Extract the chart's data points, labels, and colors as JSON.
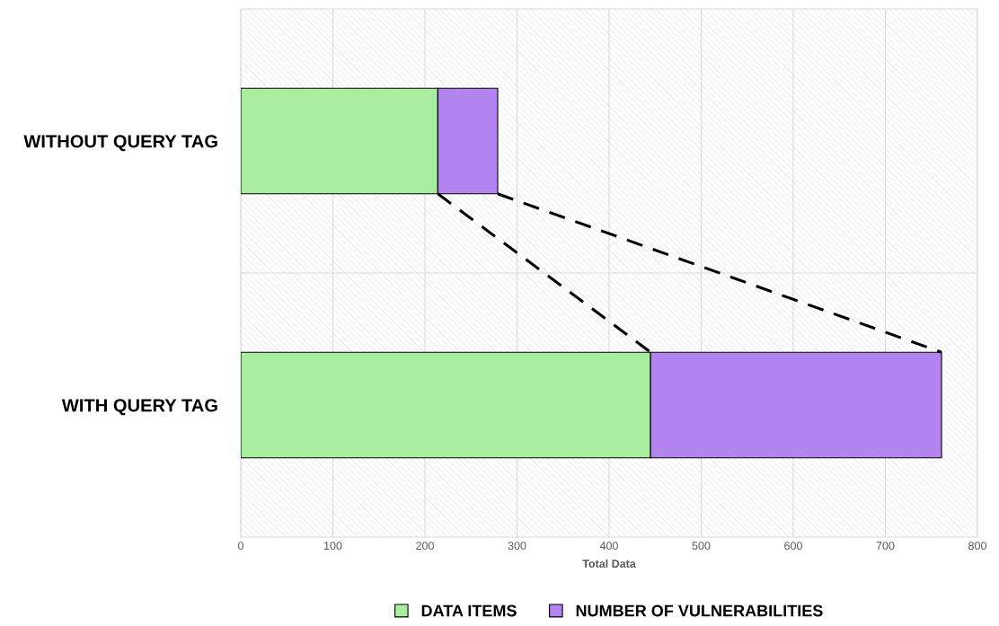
{
  "chart_data": {
    "type": "bar",
    "orientation": "horizontal",
    "stacked": true,
    "categories": [
      "WITHOUT QUERY TAG",
      "WITH QUERY TAG"
    ],
    "series": [
      {
        "name": "DATA ITEMS",
        "color": "#a9eda0",
        "values": [
          214,
          445
        ]
      },
      {
        "name": "NUMBER OF VULNERABILITIES",
        "color": "#b384f0",
        "values": [
          65,
          316
        ]
      }
    ],
    "xlabel": "Total Data",
    "xlim": [
      0,
      800
    ],
    "xticks": [
      0,
      100,
      200,
      300,
      400,
      500,
      600,
      700,
      800
    ],
    "grid": "x",
    "legend": "bottom"
  }
}
